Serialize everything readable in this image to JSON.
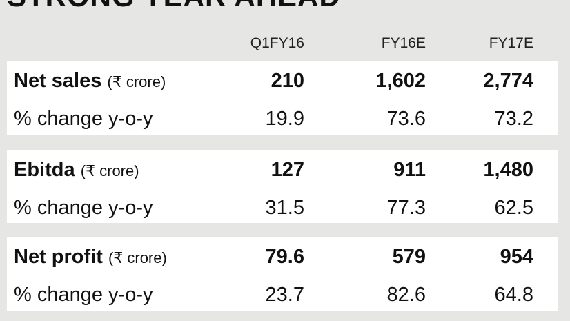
{
  "header": {
    "title": "STRONG YEAR AHEAD"
  },
  "table": {
    "columns": [
      "Q1FY16",
      "FY16E",
      "FY17E"
    ],
    "groups": [
      {
        "label": "Net sales",
        "unit": "(₹ crore)",
        "values": [
          "210",
          "1,602",
          "2,774"
        ],
        "change_label": "% change y-o-y",
        "change_values": [
          "19.9",
          "73.6",
          "73.2"
        ]
      },
      {
        "label": "Ebitda",
        "unit": "(₹ crore)",
        "values": [
          "127",
          "911",
          "1,480"
        ],
        "change_label": "% change y-o-y",
        "change_values": [
          "31.5",
          "77.3",
          "62.5"
        ]
      },
      {
        "label": "Net profit",
        "unit": "(₹ crore)",
        "values": [
          "79.6",
          "579",
          "954"
        ],
        "change_label": "% change y-o-y",
        "change_values": [
          "23.7",
          "82.6",
          "64.8"
        ]
      }
    ]
  }
}
